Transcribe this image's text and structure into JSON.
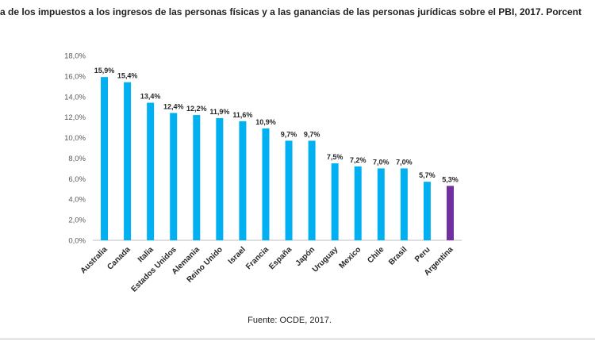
{
  "chart_data": {
    "type": "bar",
    "title": "cia de los impuestos a los ingresos de las personas físicas y a las ganancias de las personas jurídicas sobre el PBI, 2017. Porcent",
    "xlabel": "",
    "ylabel": "",
    "ylim": [
      0,
      18
    ],
    "yticks": [
      0,
      2,
      4,
      6,
      8,
      10,
      12,
      14,
      16,
      18
    ],
    "ytick_labels": [
      "0,0%",
      "2,0%",
      "4,0%",
      "6,0%",
      "8,0%",
      "10,0%",
      "12,0%",
      "14,0%",
      "16,0%",
      "18,0%"
    ],
    "grid": false,
    "categories": [
      "Australia",
      "Canada",
      "Italia",
      "Estados Unidos",
      "Alemania",
      "Reino Unido",
      "Israel",
      "Francia",
      "España",
      "Japón",
      "Uruguay",
      "Mexico",
      "Chile",
      "Brasil",
      "Peru",
      "Argentina"
    ],
    "values": [
      15.9,
      15.4,
      13.4,
      12.4,
      12.2,
      11.9,
      11.6,
      10.9,
      9.7,
      9.7,
      7.5,
      7.2,
      7.0,
      7.0,
      5.7,
      5.3
    ],
    "value_labels": [
      "15,9%",
      "15,4%",
      "13,4%",
      "12,4%",
      "12,2%",
      "11,9%",
      "11,6%",
      "10,9%",
      "9,7%",
      "9,7%",
      "7,5%",
      "7,2%",
      "7,0%",
      "7,0%",
      "5,7%",
      "5,3%"
    ],
    "colors": {
      "default": "#00B0F0",
      "highlight": "#7030A0",
      "highlight_category": "Argentina",
      "axis": "#bfbfbf",
      "text": "#262626",
      "tick_text": "#595959"
    }
  },
  "source": "Fuente: OCDE, 2017."
}
